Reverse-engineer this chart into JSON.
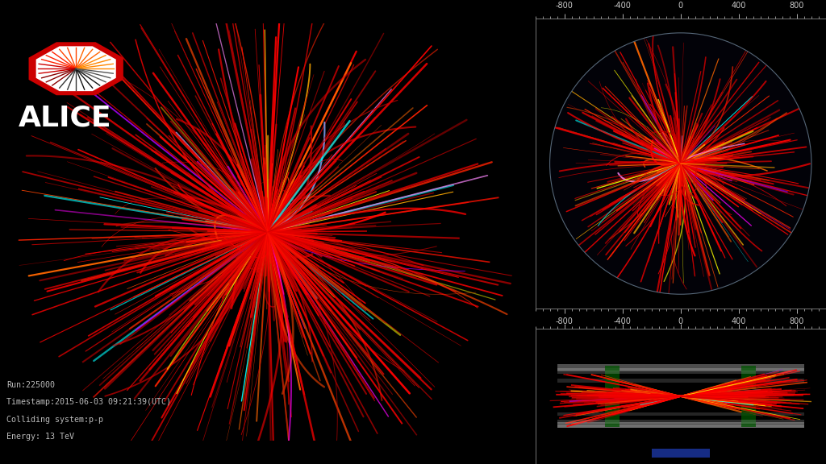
{
  "background_color": "#000000",
  "logo_octagon_color": "#cc0000",
  "logo_inner_color": "#ffffff",
  "alice_text": "ALICE",
  "alice_text_color": "#ffffff",
  "info_lines": [
    "Run:225000",
    "Timestamp:2015-06-03 09:21:39(UTC)",
    "Colliding system:p-p",
    "Energy: 13 TeV"
  ],
  "info_color": "#bbbbbb",
  "track_colors_main": [
    "#ff0000",
    "#ee0000",
    "#dd0000",
    "#cc0000",
    "#bb0000",
    "#ff2200",
    "#ff4400",
    "#ff6600",
    "#ffaa00",
    "#ffff00",
    "#00ffff",
    "#ff00ff",
    "#aa00ff",
    "#ff88ff",
    "#88aaff"
  ],
  "track_weights_main": [
    5.0,
    4.0,
    3.5,
    3.0,
    2.5,
    2.0,
    1.5,
    0.8,
    0.6,
    0.5,
    0.4,
    0.3,
    0.3,
    0.2,
    0.2
  ],
  "seed": 42,
  "axis_color": "#888888",
  "tick_color": "#cccccc",
  "xticks": [
    -800,
    -400,
    0,
    400,
    800
  ]
}
